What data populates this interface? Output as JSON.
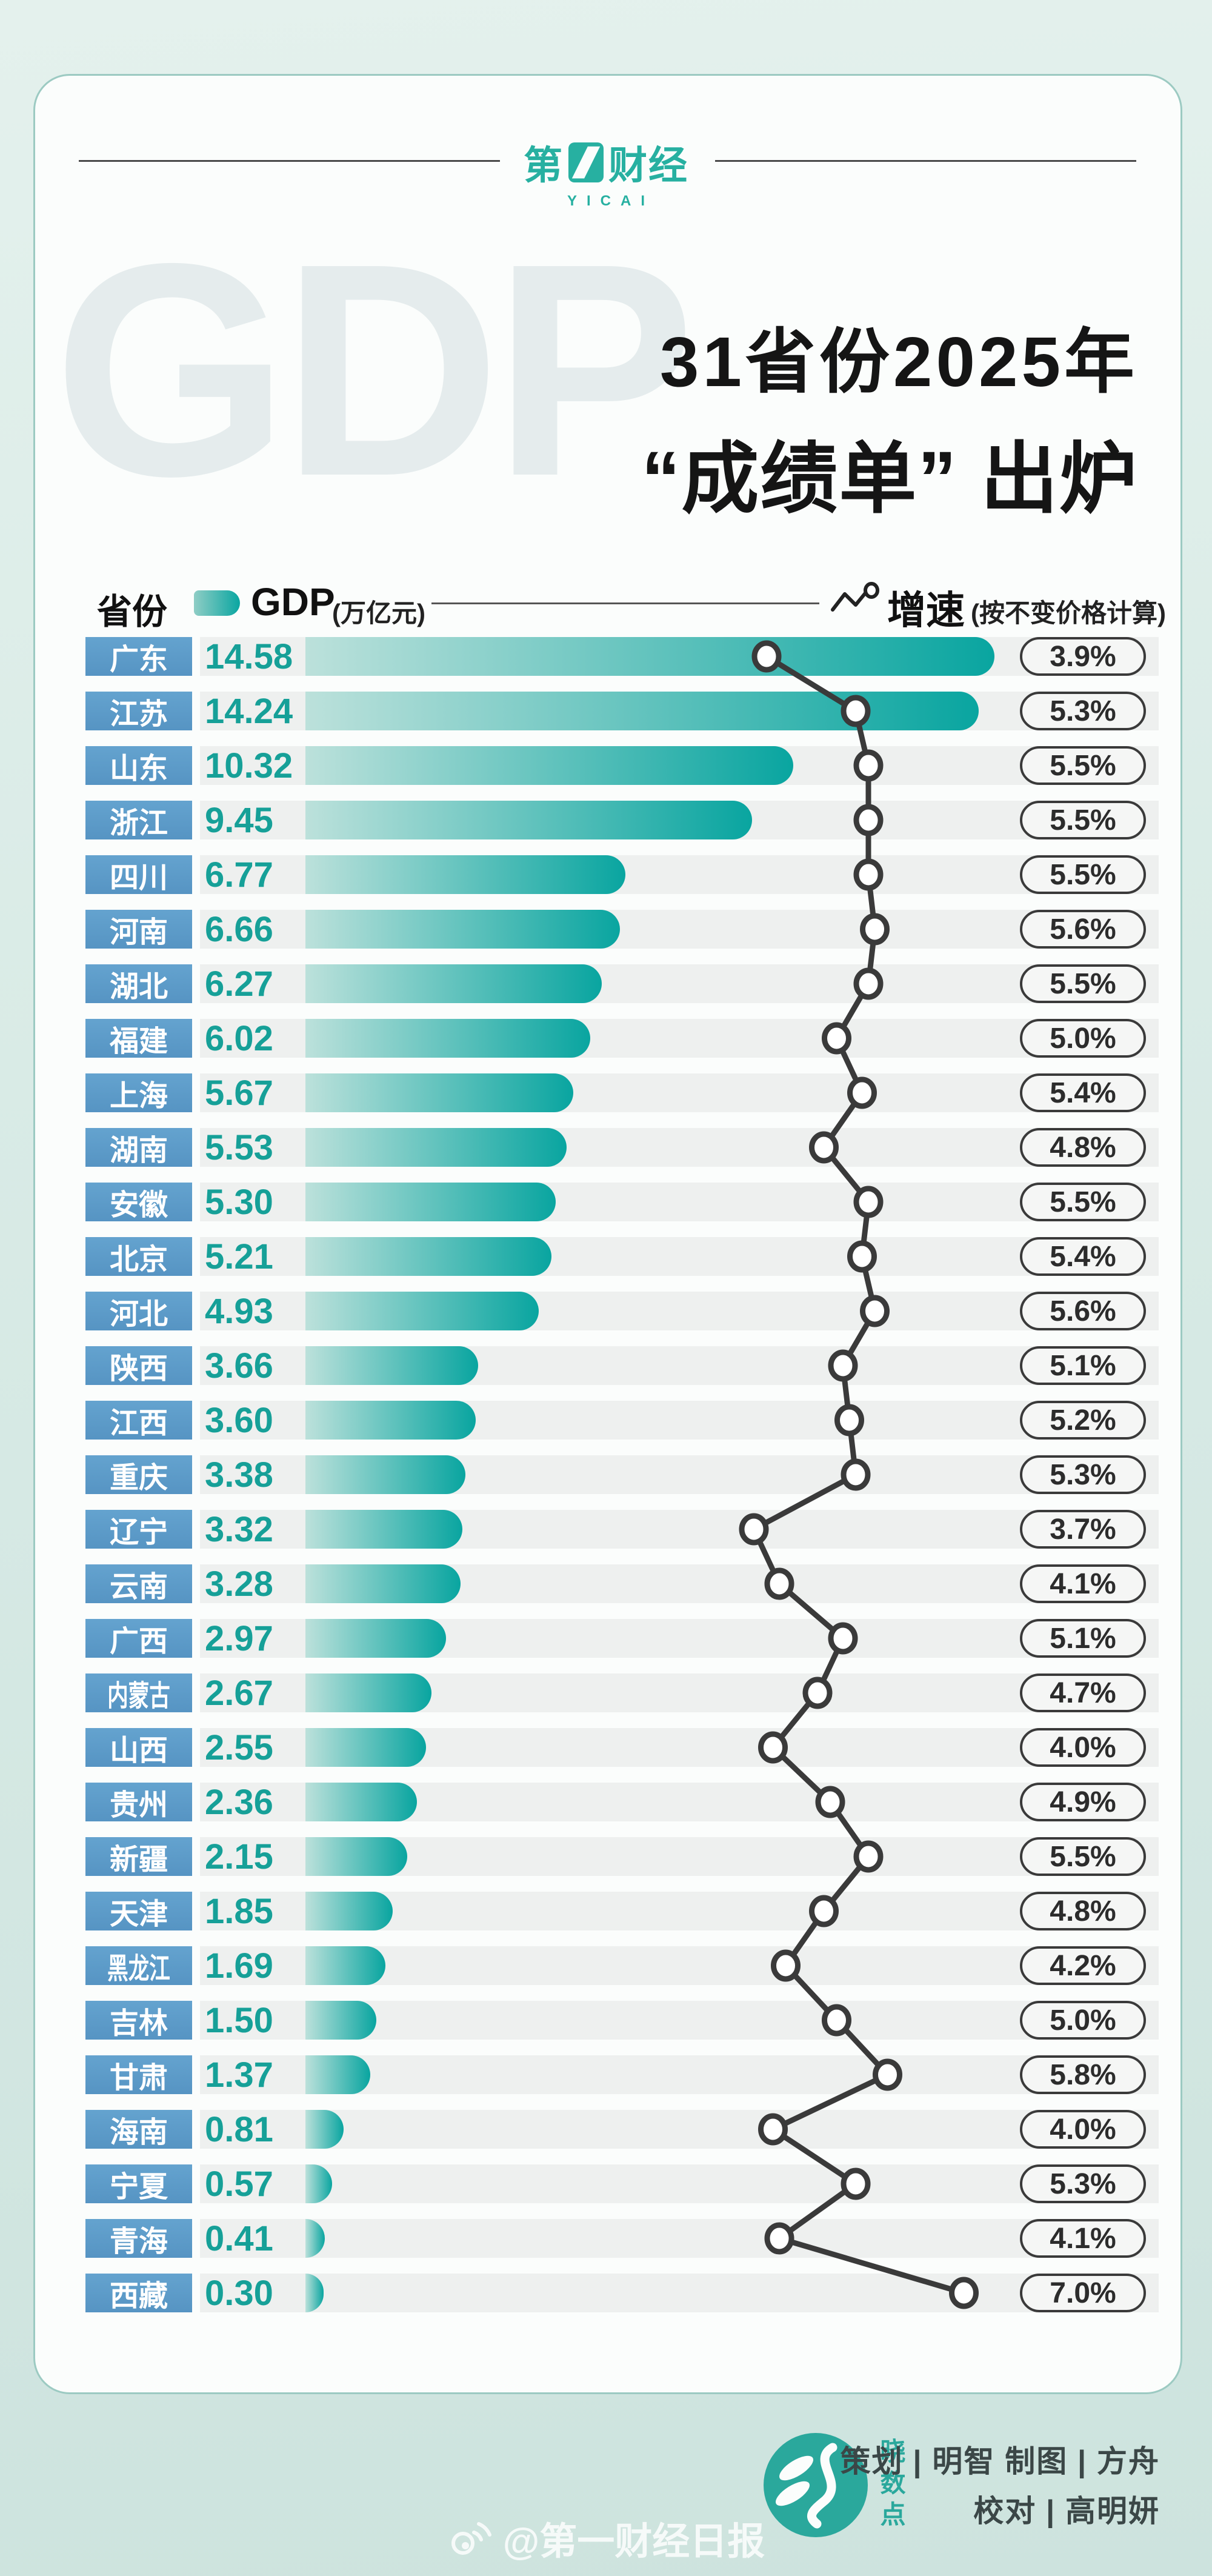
{
  "page": {
    "brand": {
      "logo_prefix": "第",
      "logo_suffix": "财经",
      "logo_full": "第一财经",
      "logo_en": "YICAI"
    },
    "title": {
      "line1": "31省份2025年",
      "line2": "“成绩单” 出炉"
    },
    "watermark_text": "GDP",
    "legend": {
      "province_header": "省份",
      "gdp_label": "GDP",
      "gdp_unit": "(万亿元)",
      "growth_label": "增速",
      "growth_note": "(按不变价格计算)"
    },
    "footer": {
      "studio_name": "晓数点",
      "credits_line1": "策划 | 明智  制图 | 方舟",
      "credits_line2": "校对 | 高明妍",
      "weibo_handle": "@第一财经日报"
    }
  },
  "colors": {
    "brand_teal": "#27b0a1",
    "bar_dark": "#09a5a0",
    "bar_light": "#bce1db",
    "province_box_blue": "#5b9cc8",
    "gdp_value_text": "#16a098",
    "row_band_gray": "#eef0ef",
    "line_and_dots": "#3a3a3a",
    "page_bg_top": "#e4f1ed",
    "page_bg_bottom": "#cde3de"
  },
  "chart_data": {
    "type": "bar",
    "orientation": "horizontal",
    "title": "31省份2025年“成绩单”出炉",
    "legend_position": "top",
    "grid": false,
    "categories": [
      "广东",
      "江苏",
      "山东",
      "浙江",
      "四川",
      "河南",
      "湖北",
      "福建",
      "上海",
      "湖南",
      "安徽",
      "北京",
      "河北",
      "陕西",
      "江西",
      "重庆",
      "辽宁",
      "云南",
      "广西",
      "内蒙古",
      "山西",
      "贵州",
      "新疆",
      "天津",
      "黑龙江",
      "吉林",
      "甘肃",
      "海南",
      "宁夏",
      "青海",
      "西藏"
    ],
    "series": [
      {
        "name": "GDP",
        "unit": "万亿元",
        "values": [
          14.58,
          14.24,
          10.32,
          9.45,
          6.77,
          6.66,
          6.27,
          6.02,
          5.67,
          5.53,
          5.3,
          5.21,
          4.93,
          3.66,
          3.6,
          3.38,
          3.32,
          3.28,
          2.97,
          2.67,
          2.55,
          2.36,
          2.15,
          1.85,
          1.69,
          1.5,
          1.37,
          0.81,
          0.57,
          0.41,
          0.3
        ]
      },
      {
        "name": "增速",
        "unit": "%",
        "note": "按不变价格计算",
        "values": [
          3.9,
          5.3,
          5.5,
          5.5,
          5.5,
          5.6,
          5.5,
          5.0,
          5.4,
          4.8,
          5.5,
          5.4,
          5.6,
          5.1,
          5.2,
          5.3,
          3.7,
          4.1,
          5.1,
          4.7,
          4.0,
          4.9,
          5.5,
          4.8,
          4.2,
          5.0,
          5.8,
          4.0,
          5.3,
          4.1,
          7.0
        ]
      }
    ],
    "gdp_bar_max": 14.58,
    "growth_axis_range": [
      3.7,
      7.0
    ]
  }
}
